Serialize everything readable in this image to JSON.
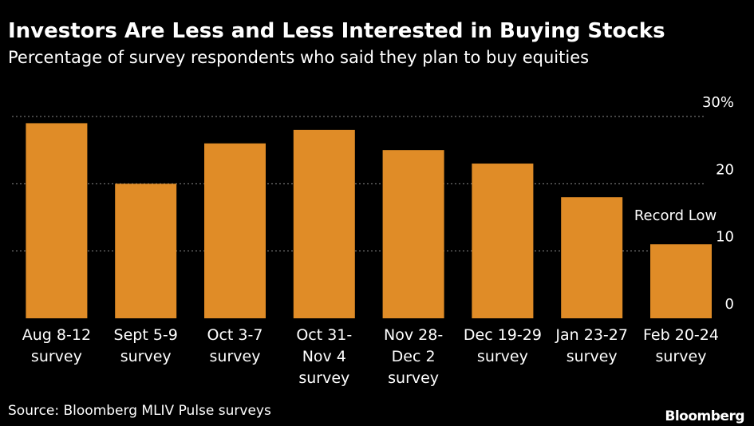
{
  "title": "Investors Are Less and Less Interested in Buying Stocks",
  "subtitle": "Percentage of survey respondents who said they plan to buy equities",
  "source": "Source: Bloomberg MLIV Pulse surveys",
  "brand": "Bloomberg",
  "colors": {
    "bar": "#e08c27",
    "background": "#000000",
    "text": "#ffffff",
    "grid": "#8a8a8a"
  },
  "chart_data": {
    "type": "bar",
    "categories": [
      [
        "Aug 8-12",
        "survey"
      ],
      [
        "Sept 5-9",
        "survey"
      ],
      [
        "Oct 3-7",
        "survey"
      ],
      [
        "Oct 31-",
        "Nov 4",
        "survey"
      ],
      [
        "Nov 28-",
        "Dec 2",
        "survey"
      ],
      [
        "Dec 19-29",
        "survey"
      ],
      [
        "Jan 23-27",
        "survey"
      ],
      [
        "Feb 20-24",
        "survey"
      ]
    ],
    "values": [
      29,
      20,
      26,
      28,
      25,
      23,
      18,
      11
    ],
    "ylim": [
      0,
      30
    ],
    "yticks": [
      "0",
      "10",
      "20",
      "30%"
    ],
    "ytick_values": [
      0,
      10,
      20,
      30
    ],
    "grid": true,
    "annotations": [
      {
        "text": "Record Low",
        "category_index": 7
      }
    ]
  }
}
